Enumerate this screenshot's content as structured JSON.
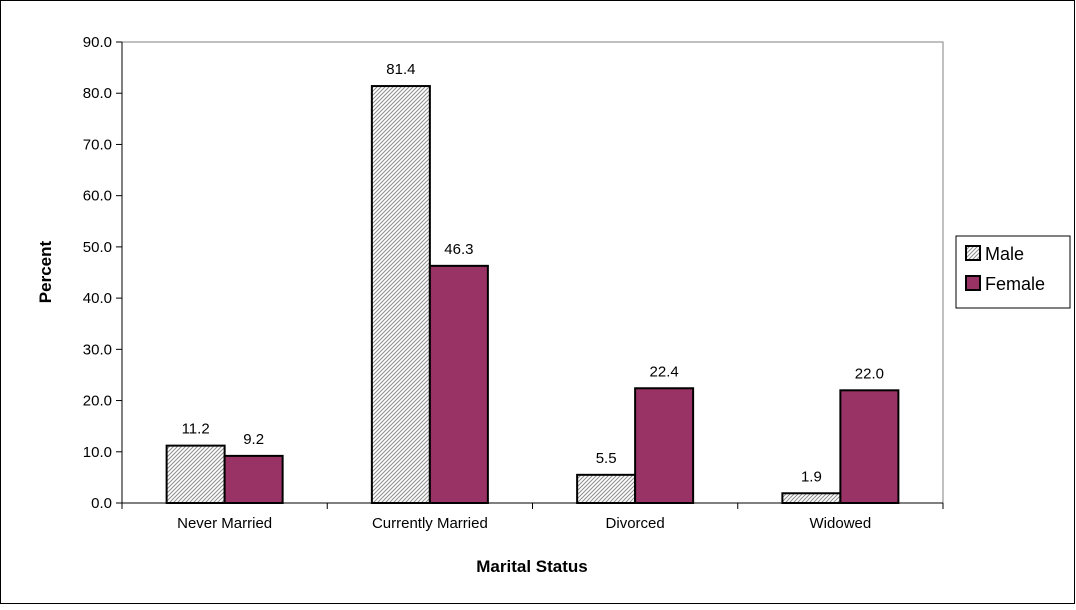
{
  "chart_data": {
    "type": "bar",
    "categories": [
      "Never Married",
      "Currently Married",
      "Divorced",
      "Widowed"
    ],
    "series": [
      {
        "name": "Male",
        "values": [
          11.2,
          81.4,
          5.5,
          1.9
        ],
        "color": "#ffffff",
        "pattern": "diagonal-hatch"
      },
      {
        "name": "Female",
        "values": [
          9.2,
          46.3,
          22.4,
          22.0
        ],
        "color": "#993366"
      }
    ],
    "data_labels": [
      [
        "11.2",
        "81.4",
        "5.5",
        "1.9"
      ],
      [
        "9.2",
        "46.3",
        "22.4",
        "22.0"
      ]
    ],
    "yticks": [
      "0.0",
      "10.0",
      "20.0",
      "30.0",
      "40.0",
      "50.0",
      "60.0",
      "70.0",
      "80.0",
      "90.0"
    ],
    "ylim": [
      0,
      90
    ],
    "xlabel": "Marital Status",
    "ylabel": "Percent",
    "grid": false,
    "legend": "right"
  }
}
